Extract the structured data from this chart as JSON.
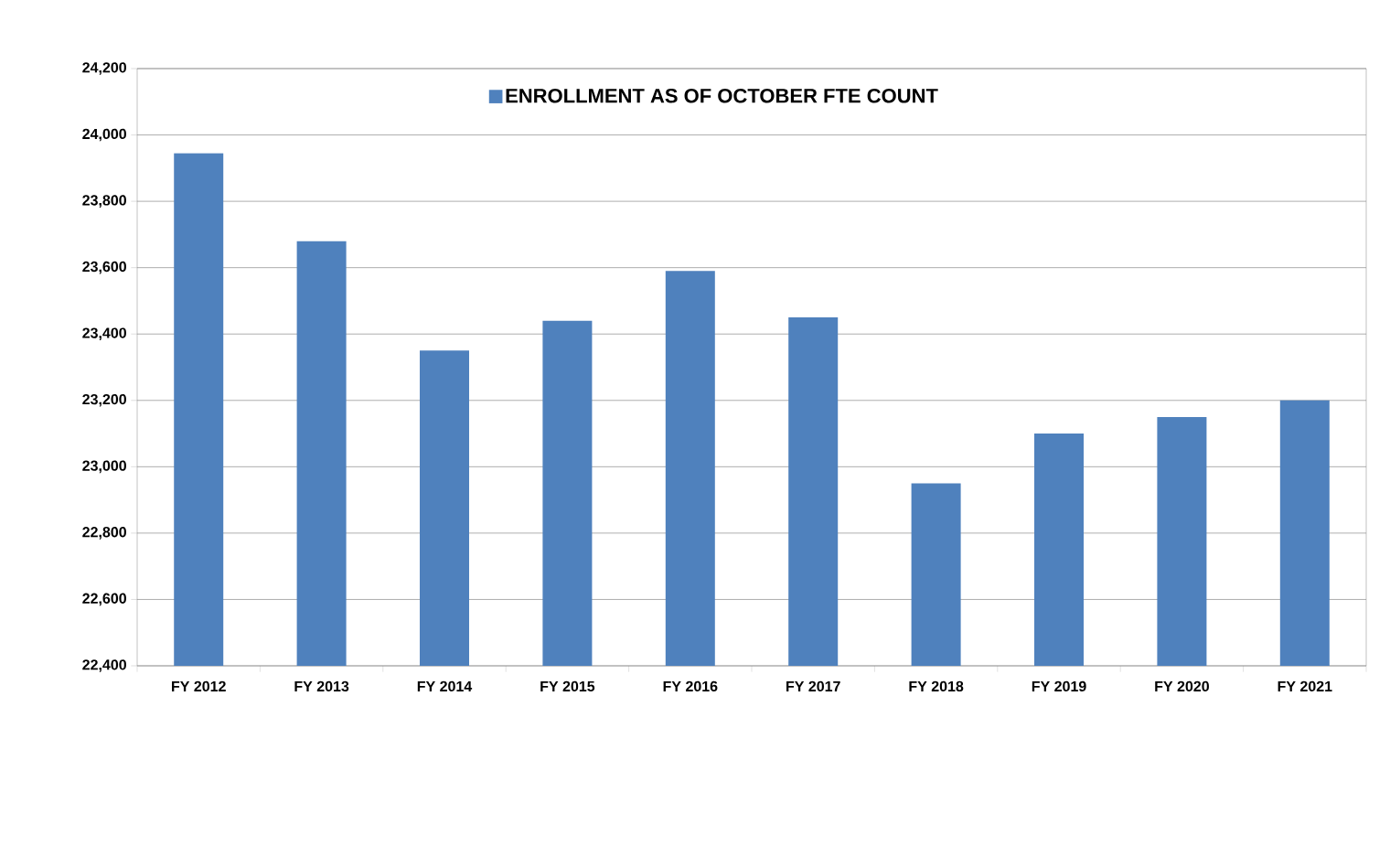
{
  "chart_data": {
    "type": "bar",
    "categories": [
      "FY 2012",
      "FY 2013",
      "FY 2014",
      "FY 2015",
      "FY 2016",
      "FY 2017",
      "FY 2018",
      "FY 2019",
      "FY 2020",
      "FY 2021"
    ],
    "series": [
      {
        "name": "ENROLLMENT AS OF OCTOBER  FTE COUNT",
        "color": "#4f81bd",
        "values": [
          23945,
          23680,
          23350,
          23440,
          23590,
          23450,
          22950,
          23100,
          23150,
          23200
        ]
      }
    ],
    "ylim": [
      22400,
      24200
    ],
    "yticks": [
      {
        "value": 22400,
        "label": "22,400"
      },
      {
        "value": 22600,
        "label": "22,600"
      },
      {
        "value": 22800,
        "label": "22,800"
      },
      {
        "value": 23000,
        "label": "23,000"
      },
      {
        "value": 23200,
        "label": "23,200"
      },
      {
        "value": 23400,
        "label": "23,400"
      },
      {
        "value": 23600,
        "label": "23,600"
      },
      {
        "value": 23800,
        "label": "23,800"
      },
      {
        "value": 24000,
        "label": "24,000"
      },
      {
        "value": 24200,
        "label": "24,200"
      }
    ],
    "grid": "y",
    "legend": "top"
  }
}
